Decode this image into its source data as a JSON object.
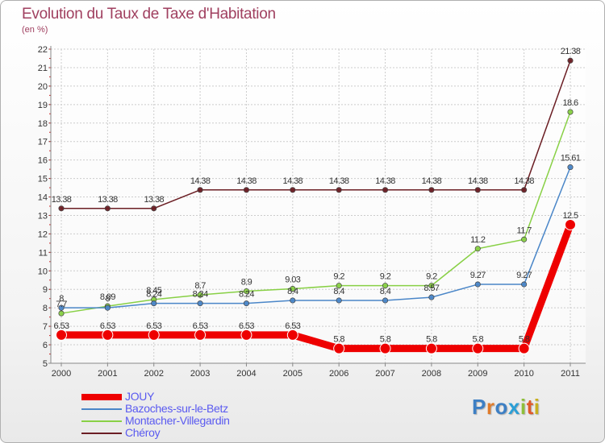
{
  "chart_data": {
    "type": "line",
    "title": "Evolution du Taux de Taxe d'Habitation",
    "subtitle": "(en %)",
    "x": [
      "2000",
      "2001",
      "2002",
      "2003",
      "2004",
      "2005",
      "2006",
      "2007",
      "2008",
      "2009",
      "2010",
      "2011"
    ],
    "ylim": [
      5,
      22
    ],
    "yticks": [
      5,
      6,
      7,
      8,
      9,
      10,
      11,
      12,
      13,
      14,
      15,
      16,
      17,
      18,
      19,
      20,
      21,
      22
    ],
    "grid": true,
    "legend_position": "bottom-left",
    "series": [
      {
        "name": "JOUY",
        "color": "#ee0000",
        "values": [
          6.53,
          6.53,
          6.53,
          6.53,
          6.53,
          6.53,
          5.8,
          5.8,
          5.8,
          5.8,
          5.8,
          12.5
        ],
        "labels": [
          "6.53",
          "6.53",
          "6.53",
          "6.53",
          "6.53",
          "6.53",
          "5.8",
          "5.8",
          "5.8",
          "5.8",
          "5.8",
          "12.5"
        ]
      },
      {
        "name": "Bazoches-sur-le-Betz",
        "color": "#4a86c8",
        "values": [
          8,
          8,
          8.24,
          8.24,
          8.24,
          8.4,
          8.4,
          8.4,
          8.57,
          9.27,
          9.27,
          15.61
        ],
        "labels": [
          "8",
          "8",
          "8.24",
          "8.24",
          "8.24",
          "8.4",
          "8.4",
          "8.4",
          "8.57",
          "9.27",
          "9.27",
          "15.61"
        ]
      },
      {
        "name": "Montacher-Villegardin",
        "color": "#88d045",
        "values": [
          7.7,
          8.09,
          8.45,
          8.7,
          8.9,
          9.03,
          9.2,
          9.2,
          9.2,
          11.2,
          11.7,
          18.6
        ],
        "labels": [
          "7.7",
          "8.09",
          "8.45",
          "8.7",
          "8.9",
          "9.03",
          "9.2",
          "9.2",
          "9.2",
          "11.2",
          "11.7",
          "18.6"
        ]
      },
      {
        "name": "Chéroy",
        "color": "#6b1e24",
        "values": [
          13.38,
          13.38,
          13.38,
          14.38,
          14.38,
          14.38,
          14.38,
          14.38,
          14.38,
          14.38,
          14.38,
          21.38
        ],
        "labels": [
          "13.38",
          "13.38",
          "13.38",
          "14.38",
          "14.38",
          "14.38",
          "14.38",
          "14.38",
          "14.38",
          "14.38",
          "14.38",
          "21.38"
        ]
      }
    ]
  },
  "logo": {
    "letters": [
      "P",
      "r",
      "o",
      "x",
      "i",
      "t",
      "i"
    ]
  }
}
